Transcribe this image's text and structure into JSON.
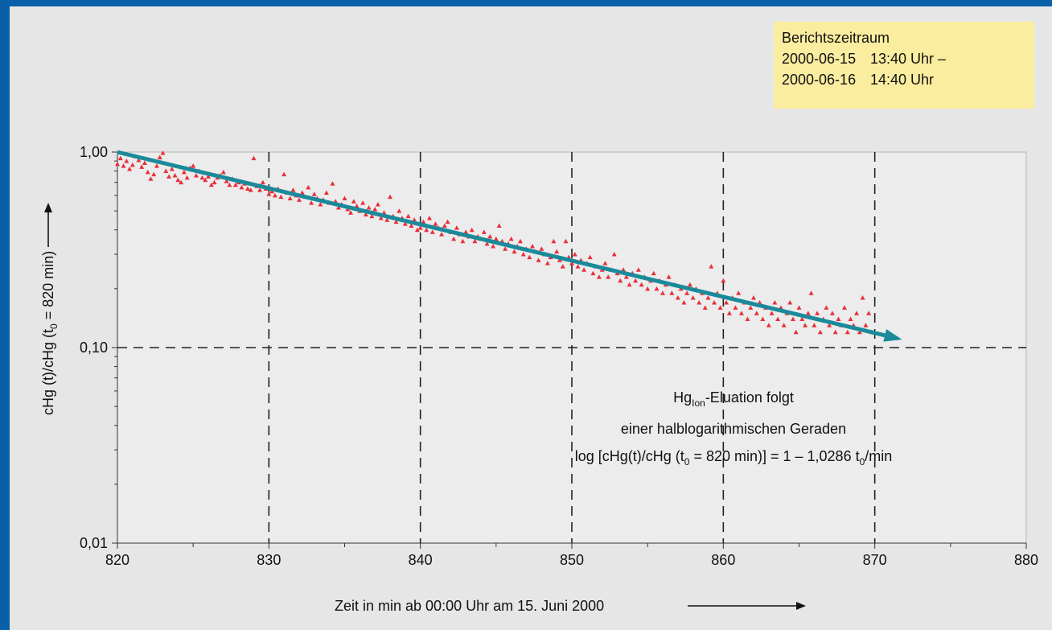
{
  "info_box": {
    "title": "Berichtszeitraum",
    "rows": [
      {
        "date": "2000-06-15",
        "time": "13:40 Uhr –"
      },
      {
        "date": "2000-06-16",
        "time": "14:40 Uhr"
      }
    ]
  },
  "annotation": {
    "line1_prefix": "Hg",
    "line1_sub": "Ion",
    "line1_suffix": "-Eluation folgt",
    "line2": "einer halblogarithmischen Geraden",
    "line3_a": "log [cHg(t)/cHg (t",
    "line3_sub1": "0",
    "line3_b": " = 820 min)] = 1 – 1,0286 t",
    "line3_sub2": "0",
    "line3_c": "/min"
  },
  "chart_data": {
    "type": "scatter",
    "x_scale": "linear",
    "y_scale": "log",
    "xlim": [
      820,
      880
    ],
    "ylim": [
      0.01,
      1.0
    ],
    "x_ticks": [
      "820",
      "830",
      "840",
      "850",
      "860",
      "870",
      "880"
    ],
    "y_ticks": [
      "0,01",
      "0,10",
      "1,00"
    ],
    "xlabel": "Zeit in min ab 00:00 Uhr am 15. Juni 2000",
    "ylabel_prefix": "cHg (t)/cHg (t",
    "ylabel_sub": "0",
    "ylabel_suffix": " = 820 min)",
    "grid": "dashed at x = 830, 840, 850, 860, 870 and y = 0,10",
    "marker_color": "#e8303a",
    "line_color": "#1a8a9a",
    "series": [
      {
        "values": [
          [
            820.0,
            0.87
          ],
          [
            820.2,
            0.93
          ],
          [
            820.4,
            0.85
          ],
          [
            820.6,
            0.9
          ],
          [
            820.8,
            0.82
          ],
          [
            821.0,
            0.86
          ],
          [
            821.2,
            0.95
          ],
          [
            821.4,
            0.91
          ],
          [
            821.6,
            0.84
          ],
          [
            821.8,
            0.88
          ],
          [
            822.0,
            0.79
          ],
          [
            822.2,
            0.73
          ],
          [
            822.4,
            0.77
          ],
          [
            822.6,
            0.85
          ],
          [
            822.8,
            0.94
          ],
          [
            823.0,
            0.99
          ],
          [
            823.2,
            0.8
          ],
          [
            823.4,
            0.75
          ],
          [
            823.6,
            0.82
          ],
          [
            823.8,
            0.76
          ],
          [
            824.0,
            0.72
          ],
          [
            824.2,
            0.7
          ],
          [
            824.4,
            0.79
          ],
          [
            824.6,
            0.74
          ],
          [
            824.8,
            0.83
          ],
          [
            825.0,
            0.85
          ],
          [
            825.2,
            0.76
          ],
          [
            825.4,
            0.8
          ],
          [
            825.6,
            0.74
          ],
          [
            825.8,
            0.72
          ],
          [
            826.0,
            0.75
          ],
          [
            826.2,
            0.68
          ],
          [
            826.4,
            0.7
          ],
          [
            826.6,
            0.74
          ],
          [
            826.8,
            0.76
          ],
          [
            827.0,
            0.79
          ],
          [
            827.2,
            0.71
          ],
          [
            827.4,
            0.68
          ],
          [
            827.6,
            0.73
          ],
          [
            827.8,
            0.68
          ],
          [
            828.0,
            0.7
          ],
          [
            828.2,
            0.66
          ],
          [
            828.4,
            0.69
          ],
          [
            828.6,
            0.65
          ],
          [
            828.8,
            0.64
          ],
          [
            829.0,
            0.93
          ],
          [
            829.2,
            0.67
          ],
          [
            829.4,
            0.64
          ],
          [
            829.6,
            0.7
          ],
          [
            829.8,
            0.65
          ],
          [
            830.0,
            0.61
          ],
          [
            830.2,
            0.63
          ],
          [
            830.4,
            0.6
          ],
          [
            830.6,
            0.65
          ],
          [
            830.8,
            0.59
          ],
          [
            831.0,
            0.77
          ],
          [
            831.2,
            0.62
          ],
          [
            831.4,
            0.58
          ],
          [
            831.6,
            0.64
          ],
          [
            831.8,
            0.6
          ],
          [
            832.0,
            0.57
          ],
          [
            832.2,
            0.62
          ],
          [
            832.4,
            0.59
          ],
          [
            832.6,
            0.66
          ],
          [
            832.8,
            0.55
          ],
          [
            833.0,
            0.61
          ],
          [
            833.2,
            0.58
          ],
          [
            833.4,
            0.54
          ],
          [
            833.6,
            0.57
          ],
          [
            833.8,
            0.62
          ],
          [
            834.0,
            0.55
          ],
          [
            834.2,
            0.69
          ],
          [
            834.4,
            0.56
          ],
          [
            834.6,
            0.52
          ],
          [
            834.8,
            0.54
          ],
          [
            835.0,
            0.58
          ],
          [
            835.2,
            0.51
          ],
          [
            835.4,
            0.49
          ],
          [
            835.6,
            0.56
          ],
          [
            835.8,
            0.53
          ],
          [
            836.0,
            0.5
          ],
          [
            836.2,
            0.55
          ],
          [
            836.4,
            0.48
          ],
          [
            836.6,
            0.52
          ],
          [
            836.8,
            0.47
          ],
          [
            837.0,
            0.51
          ],
          [
            837.2,
            0.54
          ],
          [
            837.4,
            0.46
          ],
          [
            837.6,
            0.49
          ],
          [
            837.8,
            0.45
          ],
          [
            838.0,
            0.59
          ],
          [
            838.2,
            0.47
          ],
          [
            838.4,
            0.44
          ],
          [
            838.6,
            0.5
          ],
          [
            838.8,
            0.46
          ],
          [
            839.0,
            0.43
          ],
          [
            839.2,
            0.47
          ],
          [
            839.4,
            0.42
          ],
          [
            839.6,
            0.45
          ],
          [
            839.8,
            0.4
          ],
          [
            840.0,
            0.41
          ],
          [
            840.2,
            0.44
          ],
          [
            840.4,
            0.4
          ],
          [
            840.6,
            0.46
          ],
          [
            840.8,
            0.39
          ],
          [
            841.0,
            0.43
          ],
          [
            841.2,
            0.41
          ],
          [
            841.4,
            0.38
          ],
          [
            841.6,
            0.42
          ],
          [
            841.8,
            0.44
          ],
          [
            842.0,
            0.39
          ],
          [
            842.2,
            0.36
          ],
          [
            842.4,
            0.41
          ],
          [
            842.6,
            0.38
          ],
          [
            842.8,
            0.35
          ],
          [
            843.0,
            0.39
          ],
          [
            843.2,
            0.37
          ],
          [
            843.4,
            0.4
          ],
          [
            843.6,
            0.35
          ],
          [
            843.8,
            0.37
          ],
          [
            844.0,
            0.36
          ],
          [
            844.2,
            0.39
          ],
          [
            844.4,
            0.34
          ],
          [
            844.6,
            0.37
          ],
          [
            844.8,
            0.33
          ],
          [
            845.0,
            0.36
          ],
          [
            845.2,
            0.42
          ],
          [
            845.4,
            0.35
          ],
          [
            845.6,
            0.32
          ],
          [
            845.8,
            0.34
          ],
          [
            846.0,
            0.36
          ],
          [
            846.2,
            0.31
          ],
          [
            846.4,
            0.33
          ],
          [
            846.6,
            0.35
          ],
          [
            846.8,
            0.3
          ],
          [
            847.0,
            0.32
          ],
          [
            847.2,
            0.29
          ],
          [
            847.4,
            0.33
          ],
          [
            847.6,
            0.31
          ],
          [
            847.8,
            0.28
          ],
          [
            848.0,
            0.32
          ],
          [
            848.2,
            0.3
          ],
          [
            848.4,
            0.27
          ],
          [
            848.6,
            0.29
          ],
          [
            848.8,
            0.35
          ],
          [
            849.0,
            0.31
          ],
          [
            849.2,
            0.28
          ],
          [
            849.4,
            0.26
          ],
          [
            849.6,
            0.35
          ],
          [
            849.8,
            0.29
          ],
          [
            850.0,
            0.27
          ],
          [
            850.2,
            0.3
          ],
          [
            850.4,
            0.26
          ],
          [
            850.6,
            0.28
          ],
          [
            850.8,
            0.25
          ],
          [
            851.0,
            0.27
          ],
          [
            851.2,
            0.29
          ],
          [
            851.4,
            0.24
          ],
          [
            851.6,
            0.26
          ],
          [
            851.8,
            0.23
          ],
          [
            852.0,
            0.25
          ],
          [
            852.2,
            0.27
          ],
          [
            852.4,
            0.23
          ],
          [
            852.6,
            0.25
          ],
          [
            852.8,
            0.3
          ],
          [
            853.0,
            0.24
          ],
          [
            853.2,
            0.22
          ],
          [
            853.4,
            0.25
          ],
          [
            853.6,
            0.23
          ],
          [
            853.8,
            0.21
          ],
          [
            854.0,
            0.24
          ],
          [
            854.2,
            0.22
          ],
          [
            854.4,
            0.25
          ],
          [
            854.6,
            0.21
          ],
          [
            854.8,
            0.23
          ],
          [
            855.0,
            0.2
          ],
          [
            855.2,
            0.22
          ],
          [
            855.4,
            0.24
          ],
          [
            855.6,
            0.2
          ],
          [
            855.8,
            0.22
          ],
          [
            856.0,
            0.19
          ],
          [
            856.2,
            0.21
          ],
          [
            856.4,
            0.23
          ],
          [
            856.6,
            0.19
          ],
          [
            856.8,
            0.21
          ],
          [
            857.0,
            0.18
          ],
          [
            857.2,
            0.2
          ],
          [
            857.4,
            0.17
          ],
          [
            857.6,
            0.19
          ],
          [
            857.8,
            0.21
          ],
          [
            858.0,
            0.18
          ],
          [
            858.2,
            0.2
          ],
          [
            858.4,
            0.17
          ],
          [
            858.6,
            0.19
          ],
          [
            858.8,
            0.16
          ],
          [
            859.0,
            0.18
          ],
          [
            859.2,
            0.26
          ],
          [
            859.4,
            0.17
          ],
          [
            859.6,
            0.19
          ],
          [
            859.8,
            0.16
          ],
          [
            860.0,
            0.22
          ],
          [
            860.2,
            0.17
          ],
          [
            860.4,
            0.15
          ],
          [
            860.6,
            0.18
          ],
          [
            860.8,
            0.16
          ],
          [
            861.0,
            0.19
          ],
          [
            861.2,
            0.15
          ],
          [
            861.4,
            0.17
          ],
          [
            861.6,
            0.14
          ],
          [
            861.8,
            0.16
          ],
          [
            862.0,
            0.18
          ],
          [
            862.2,
            0.15
          ],
          [
            862.4,
            0.17
          ],
          [
            862.6,
            0.14
          ],
          [
            862.8,
            0.16
          ],
          [
            863.0,
            0.13
          ],
          [
            863.2,
            0.15
          ],
          [
            863.4,
            0.17
          ],
          [
            863.6,
            0.14
          ],
          [
            863.8,
            0.16
          ],
          [
            864.0,
            0.13
          ],
          [
            864.2,
            0.15
          ],
          [
            864.4,
            0.17
          ],
          [
            864.6,
            0.14
          ],
          [
            864.8,
            0.12
          ],
          [
            865.0,
            0.16
          ],
          [
            865.2,
            0.14
          ],
          [
            865.4,
            0.13
          ],
          [
            865.6,
            0.15
          ],
          [
            865.8,
            0.19
          ],
          [
            866.0,
            0.13
          ],
          [
            866.2,
            0.15
          ],
          [
            866.4,
            0.12
          ],
          [
            866.6,
            0.14
          ],
          [
            866.8,
            0.16
          ],
          [
            867.0,
            0.13
          ],
          [
            867.2,
            0.15
          ],
          [
            867.4,
            0.12
          ],
          [
            867.6,
            0.14
          ],
          [
            867.8,
            0.13
          ],
          [
            868.0,
            0.16
          ],
          [
            868.2,
            0.12
          ],
          [
            868.4,
            0.14
          ],
          [
            868.6,
            0.13
          ],
          [
            868.8,
            0.15
          ],
          [
            869.0,
            0.12
          ],
          [
            869.2,
            0.18
          ],
          [
            869.4,
            0.13
          ],
          [
            869.6,
            0.15
          ],
          [
            869.8,
            0.12
          ]
        ]
      }
    ],
    "fit_line": {
      "x": [
        820,
        871.8
      ],
      "y": [
        1.0,
        0.11
      ]
    }
  }
}
